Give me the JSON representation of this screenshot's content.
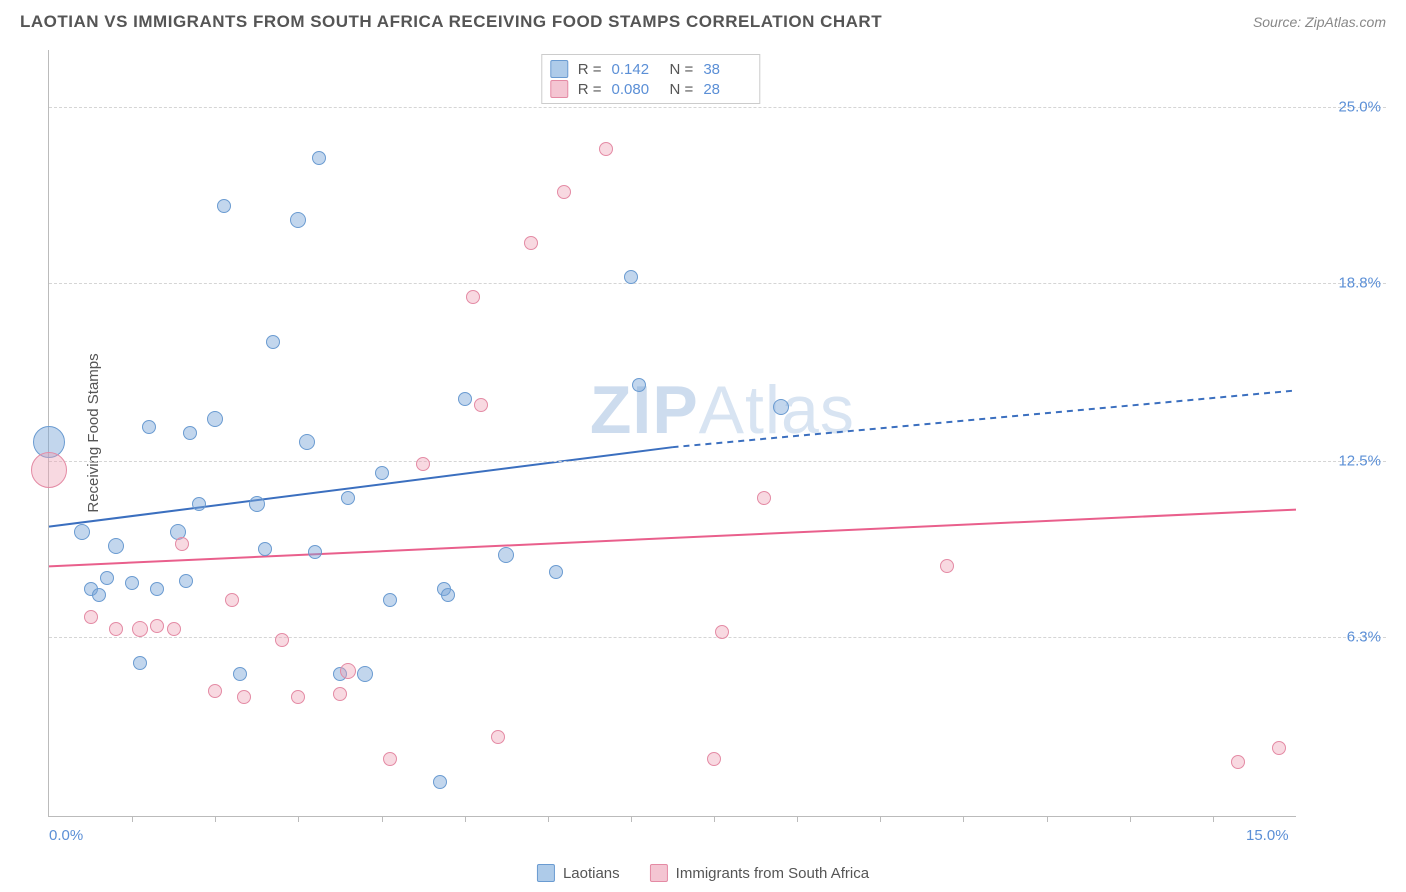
{
  "header": {
    "title": "LAOTIAN VS IMMIGRANTS FROM SOUTH AFRICA RECEIVING FOOD STAMPS CORRELATION CHART",
    "source": "Source: ZipAtlas.com"
  },
  "chart": {
    "type": "scatter",
    "ylabel": "Receiving Food Stamps",
    "watermark_a": "ZIP",
    "watermark_b": "Atlas",
    "background_color": "#ffffff",
    "grid_color": "#d5d5d5",
    "axis_color": "#bbbbbb",
    "tick_label_color": "#5b8fd6",
    "xlim": [
      0,
      15
    ],
    "ylim": [
      0,
      27
    ],
    "xticks_minor": [
      1,
      2,
      3,
      4,
      5,
      6,
      7,
      8,
      9,
      10,
      11,
      12,
      13,
      14
    ],
    "xaxis_labels": [
      {
        "x": 0,
        "text": "0.0%"
      },
      {
        "x": 15,
        "text": "15.0%"
      }
    ],
    "yticks": [
      {
        "y": 6.3,
        "text": "6.3%"
      },
      {
        "y": 12.5,
        "text": "12.5%"
      },
      {
        "y": 18.8,
        "text": "18.8%"
      },
      {
        "y": 25.0,
        "text": "25.0%"
      }
    ],
    "series": [
      {
        "name": "Laotians",
        "fill": "rgba(120,165,216,0.45)",
        "stroke": "#6a9bd1",
        "swatch_fill": "#aecbe9",
        "swatch_stroke": "#6a9bd1",
        "line_color": "#3b6fbf",
        "line_width": 2,
        "stats": {
          "R": "0.142",
          "N": "38"
        },
        "trend": {
          "x1": 0,
          "y1": 10.2,
          "x_split": 7.5,
          "y_split": 13.0,
          "x2": 15,
          "y2": 15.0
        },
        "points": [
          {
            "x": 0.0,
            "y": 13.2,
            "r": 16
          },
          {
            "x": 0.4,
            "y": 10.0,
            "r": 8
          },
          {
            "x": 0.5,
            "y": 8.0,
            "r": 7
          },
          {
            "x": 0.6,
            "y": 7.8,
            "r": 7
          },
          {
            "x": 0.7,
            "y": 8.4,
            "r": 7
          },
          {
            "x": 0.8,
            "y": 9.5,
            "r": 8
          },
          {
            "x": 1.0,
            "y": 8.2,
            "r": 7
          },
          {
            "x": 1.1,
            "y": 5.4,
            "r": 7
          },
          {
            "x": 1.2,
            "y": 13.7,
            "r": 7
          },
          {
            "x": 1.3,
            "y": 8.0,
            "r": 7
          },
          {
            "x": 1.55,
            "y": 10.0,
            "r": 8
          },
          {
            "x": 1.65,
            "y": 8.3,
            "r": 7
          },
          {
            "x": 1.7,
            "y": 13.5,
            "r": 7
          },
          {
            "x": 1.8,
            "y": 11.0,
            "r": 7
          },
          {
            "x": 2.0,
            "y": 14.0,
            "r": 8
          },
          {
            "x": 2.1,
            "y": 21.5,
            "r": 7
          },
          {
            "x": 2.3,
            "y": 5.0,
            "r": 7
          },
          {
            "x": 2.5,
            "y": 11.0,
            "r": 8
          },
          {
            "x": 2.6,
            "y": 9.4,
            "r": 7
          },
          {
            "x": 2.7,
            "y": 16.7,
            "r": 7
          },
          {
            "x": 3.0,
            "y": 21.0,
            "r": 8
          },
          {
            "x": 3.1,
            "y": 13.2,
            "r": 8
          },
          {
            "x": 3.2,
            "y": 9.3,
            "r": 7
          },
          {
            "x": 3.25,
            "y": 23.2,
            "r": 7
          },
          {
            "x": 3.5,
            "y": 5.0,
            "r": 7
          },
          {
            "x": 3.6,
            "y": 11.2,
            "r": 7
          },
          {
            "x": 3.8,
            "y": 5.0,
            "r": 8
          },
          {
            "x": 4.0,
            "y": 12.1,
            "r": 7
          },
          {
            "x": 4.1,
            "y": 7.6,
            "r": 7
          },
          {
            "x": 4.7,
            "y": 1.2,
            "r": 7
          },
          {
            "x": 4.75,
            "y": 8.0,
            "r": 7
          },
          {
            "x": 4.8,
            "y": 7.8,
            "r": 7
          },
          {
            "x": 5.0,
            "y": 14.7,
            "r": 7
          },
          {
            "x": 5.5,
            "y": 9.2,
            "r": 8
          },
          {
            "x": 6.1,
            "y": 8.6,
            "r": 7
          },
          {
            "x": 7.0,
            "y": 19.0,
            "r": 7
          },
          {
            "x": 7.1,
            "y": 15.2,
            "r": 7
          },
          {
            "x": 8.8,
            "y": 14.4,
            "r": 8
          }
        ]
      },
      {
        "name": "Immigrants from South Africa",
        "fill": "rgba(238,160,180,0.40)",
        "stroke": "#e48aa4",
        "swatch_fill": "#f4c5d2",
        "swatch_stroke": "#e48aa4",
        "line_color": "#e95f8c",
        "line_width": 2,
        "stats": {
          "R": "0.080",
          "N": "28"
        },
        "trend": {
          "x1": 0,
          "y1": 8.8,
          "x_split": 15,
          "y_split": 10.8,
          "x2": 15,
          "y2": 10.8
        },
        "points": [
          {
            "x": 0.0,
            "y": 12.2,
            "r": 18
          },
          {
            "x": 0.5,
            "y": 7.0,
            "r": 7
          },
          {
            "x": 0.8,
            "y": 6.6,
            "r": 7
          },
          {
            "x": 1.1,
            "y": 6.6,
            "r": 8
          },
          {
            "x": 1.3,
            "y": 6.7,
            "r": 7
          },
          {
            "x": 1.5,
            "y": 6.6,
            "r": 7
          },
          {
            "x": 1.6,
            "y": 9.6,
            "r": 7
          },
          {
            "x": 2.0,
            "y": 4.4,
            "r": 7
          },
          {
            "x": 2.2,
            "y": 7.6,
            "r": 7
          },
          {
            "x": 2.35,
            "y": 4.2,
            "r": 7
          },
          {
            "x": 2.8,
            "y": 6.2,
            "r": 7
          },
          {
            "x": 3.0,
            "y": 4.2,
            "r": 7
          },
          {
            "x": 3.5,
            "y": 4.3,
            "r": 7
          },
          {
            "x": 3.6,
            "y": 5.1,
            "r": 8
          },
          {
            "x": 4.1,
            "y": 2.0,
            "r": 7
          },
          {
            "x": 4.5,
            "y": 12.4,
            "r": 7
          },
          {
            "x": 5.1,
            "y": 18.3,
            "r": 7
          },
          {
            "x": 5.2,
            "y": 14.5,
            "r": 7
          },
          {
            "x": 5.4,
            "y": 2.8,
            "r": 7
          },
          {
            "x": 5.8,
            "y": 20.2,
            "r": 7
          },
          {
            "x": 6.2,
            "y": 22.0,
            "r": 7
          },
          {
            "x": 6.7,
            "y": 23.5,
            "r": 7
          },
          {
            "x": 8.0,
            "y": 2.0,
            "r": 7
          },
          {
            "x": 8.1,
            "y": 6.5,
            "r": 7
          },
          {
            "x": 8.6,
            "y": 11.2,
            "r": 7
          },
          {
            "x": 10.8,
            "y": 8.8,
            "r": 7
          },
          {
            "x": 14.3,
            "y": 1.9,
            "r": 7
          },
          {
            "x": 14.8,
            "y": 2.4,
            "r": 7
          }
        ]
      }
    ],
    "legend_top": {
      "r_label": "R =",
      "n_label": "N ="
    }
  }
}
